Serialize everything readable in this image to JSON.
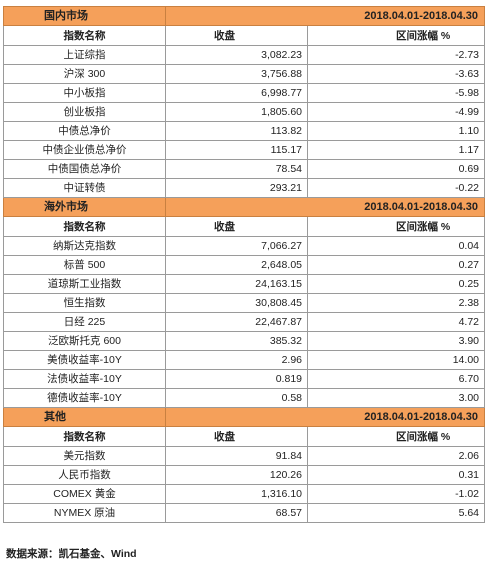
{
  "sections": [
    {
      "title": "国内市场",
      "period": "2018.04.01-2018.04.30",
      "header": {
        "name": "指数名称",
        "close": "收盘",
        "change": "区间涨幅 %"
      },
      "rows": [
        {
          "name": "上证综指",
          "close": "3,082.23",
          "change": "-2.73"
        },
        {
          "name": "沪深 300",
          "close": "3,756.88",
          "change": "-3.63"
        },
        {
          "name": "中小板指",
          "close": "6,998.77",
          "change": "-5.98"
        },
        {
          "name": "创业板指",
          "close": "1,805.60",
          "change": "-4.99"
        },
        {
          "name": "中债总净价",
          "close": "113.82",
          "change": "1.10"
        },
        {
          "name": "中债企业债总净价",
          "close": "115.17",
          "change": "1.17"
        },
        {
          "name": "中债国债总净价",
          "close": "78.54",
          "change": "0.69"
        },
        {
          "name": "中证转债",
          "close": "293.21",
          "change": "-0.22"
        }
      ]
    },
    {
      "title": "海外市场",
      "period": "2018.04.01-2018.04.30",
      "header": {
        "name": "指数名称",
        "close": "收盘",
        "change": "区间涨幅 %"
      },
      "rows": [
        {
          "name": "纳斯达克指数",
          "close": "7,066.27",
          "change": "0.04"
        },
        {
          "name": "标普 500",
          "close": "2,648.05",
          "change": "0.27"
        },
        {
          "name": "道琼斯工业指数",
          "close": "24,163.15",
          "change": "0.25"
        },
        {
          "name": "恒生指数",
          "close": "30,808.45",
          "change": "2.38"
        },
        {
          "name": "日经 225",
          "close": "22,467.87",
          "change": "4.72"
        },
        {
          "name": "泛欧斯托克 600",
          "close": "385.32",
          "change": "3.90"
        },
        {
          "name": "美债收益率-10Y",
          "close": "2.96",
          "change": "14.00"
        },
        {
          "name": "法债收益率-10Y",
          "close": "0.819",
          "change": "6.70"
        },
        {
          "name": "德债收益率-10Y",
          "close": "0.58",
          "change": "3.00"
        }
      ]
    },
    {
      "title": "其他",
      "period": "2018.04.01-2018.04.30",
      "header": {
        "name": "指数名称",
        "close": "收盘",
        "change": "区间涨幅 %"
      },
      "rows": [
        {
          "name": "美元指数",
          "close": "91.84",
          "change": "2.06"
        },
        {
          "name": "人民币指数",
          "close": "120.26",
          "change": "0.31"
        },
        {
          "name": "COMEX 黄金",
          "close": "1,316.10",
          "change": "-1.02"
        },
        {
          "name": "NYMEX 原油",
          "close": "68.57",
          "change": "5.64"
        }
      ]
    }
  ],
  "source": "数据来源：凯石基金、Wind",
  "colors": {
    "section_bg": "#f5a05a",
    "border": "#9a9a9a"
  }
}
